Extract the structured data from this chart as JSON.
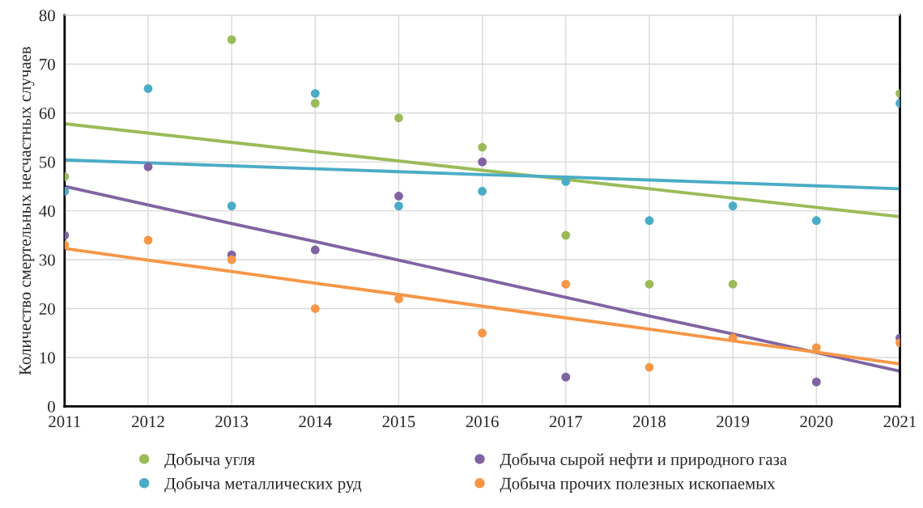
{
  "chart_data": {
    "type": "scatter",
    "ylabel": "Количество смертельных несчастных случаев",
    "x": [
      2011,
      2012,
      2013,
      2014,
      2015,
      2016,
      2017,
      2018,
      2019,
      2020,
      2021
    ],
    "xlim": [
      2011,
      2021
    ],
    "xticks": [
      2011,
      2012,
      2013,
      2014,
      2015,
      2016,
      2017,
      2018,
      2019,
      2020,
      2021
    ],
    "ylim": [
      0,
      80
    ],
    "yticks": [
      0,
      10,
      20,
      30,
      40,
      50,
      60,
      70,
      80
    ],
    "grid": true,
    "legend": "bottom",
    "marker": "circle",
    "series": [
      {
        "name": "Добыча угля",
        "color": "#9bbb59",
        "values": [
          47,
          null,
          75,
          62,
          59,
          53,
          35,
          25,
          25,
          null,
          64
        ]
      },
      {
        "name": "Добыча металлических руд",
        "color": "#4bacc6",
        "values": [
          44,
          65,
          41,
          64,
          41,
          44,
          46,
          38,
          41,
          38,
          62
        ]
      },
      {
        "name": "Добыча сырой нефти и природного газа",
        "color": "#8064a2",
        "values": [
          35,
          49,
          31,
          32,
          43,
          50,
          6,
          null,
          null,
          5,
          14
        ]
      },
      {
        "name": "Добыча прочих полезных ископаемых",
        "color": "#f79646",
        "values": [
          33,
          34,
          30,
          20,
          22,
          15,
          25,
          8,
          14,
          12,
          13
        ]
      },
      {
        "type": "line",
        "marker": "none",
        "color": "#9bbb59",
        "values": [
          57.8,
          55.9,
          54.0,
          52.1,
          50.2,
          48.3,
          46.4,
          44.5,
          42.6,
          40.7,
          38.8
        ]
      },
      {
        "type": "line",
        "marker": "none",
        "color": "#4bacc6",
        "values": [
          50.4,
          49.8,
          49.2,
          48.6,
          48.0,
          47.4,
          46.9,
          46.3,
          45.7,
          45.1,
          44.5
        ]
      },
      {
        "type": "line",
        "marker": "none",
        "color": "#8064a2",
        "values": [
          45.0,
          41.2,
          37.4,
          33.7,
          29.9,
          26.1,
          22.3,
          18.5,
          14.8,
          11.0,
          7.2
        ]
      },
      {
        "type": "line",
        "marker": "none",
        "color": "#f79646",
        "values": [
          32.3,
          29.9,
          27.6,
          25.2,
          22.9,
          20.5,
          18.1,
          15.8,
          13.4,
          11.1,
          8.7
        ]
      }
    ]
  }
}
